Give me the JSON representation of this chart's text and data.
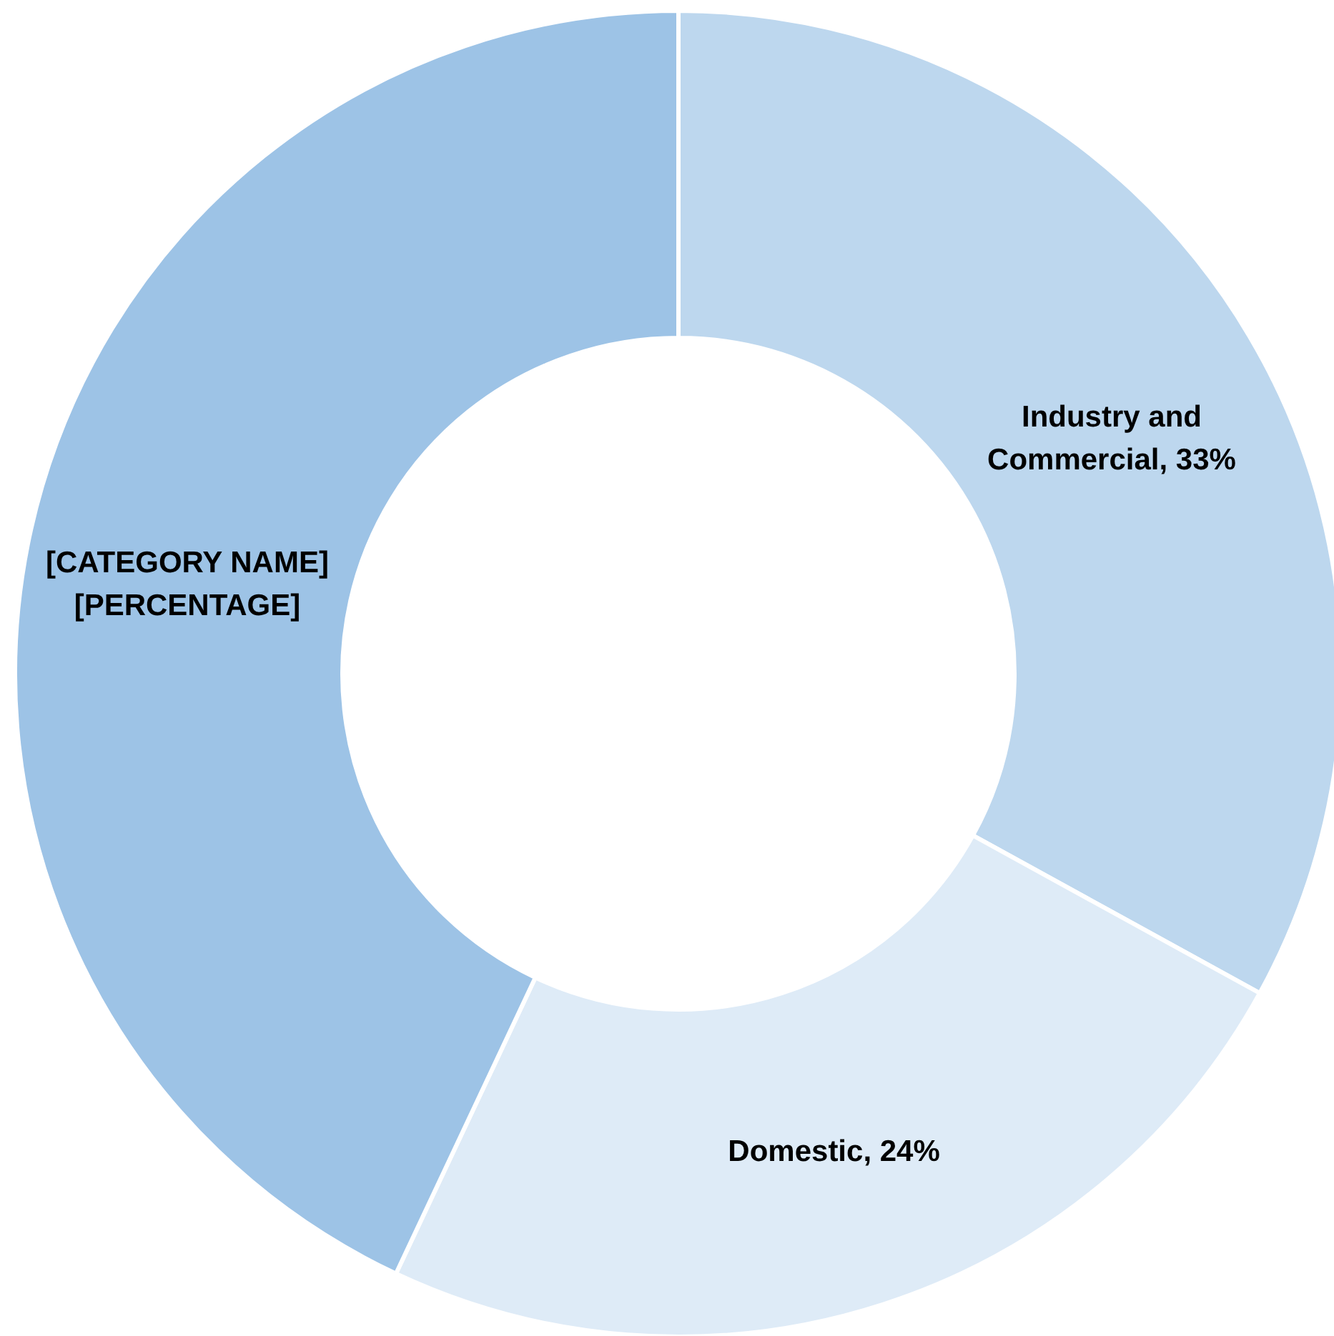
{
  "chart_data": {
    "type": "donut",
    "categories": [
      "Industry and Commercial",
      "Domestic",
      "[CATEGORY NAME]"
    ],
    "values": [
      33,
      24,
      43
    ],
    "value_labels": [
      "33%",
      "24%",
      "[PERCENTAGE]"
    ],
    "colors": [
      "#bdd7ee",
      "#deebf7",
      "#9dc3e6"
    ]
  }
}
